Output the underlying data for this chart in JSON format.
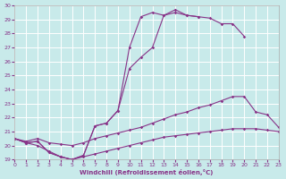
{
  "background_color": "#c8eaea",
  "grid_color": "#ffffff",
  "line_color": "#883388",
  "ylim": [
    19,
    30
  ],
  "xlim": [
    0,
    23
  ],
  "yticks": [
    19,
    20,
    21,
    22,
    23,
    24,
    25,
    26,
    27,
    28,
    29,
    30
  ],
  "xticks": [
    0,
    1,
    2,
    3,
    4,
    5,
    6,
    7,
    8,
    9,
    10,
    11,
    12,
    13,
    14,
    15,
    16,
    17,
    18,
    19,
    20,
    21,
    22,
    23
  ],
  "xlabel": "Windchill (Refroidissement éolien,°C)",
  "line1_x": [
    0,
    1,
    2,
    3,
    4,
    5,
    6,
    7,
    8,
    9,
    10,
    11,
    12,
    13,
    14,
    15,
    16,
    17,
    18,
    19,
    20
  ],
  "line1_y": [
    20.5,
    20.2,
    20.3,
    19.5,
    19.2,
    19.0,
    19.3,
    21.4,
    21.6,
    22.5,
    27.0,
    29.2,
    29.5,
    29.3,
    29.7,
    29.3,
    29.2,
    29.1,
    28.7,
    28.7,
    27.8
  ],
  "line2_x": [
    0,
    1,
    2,
    3,
    4,
    5,
    6,
    7,
    8,
    9,
    10,
    11,
    12,
    13,
    14,
    15,
    16,
    17,
    18
  ],
  "line2_y": [
    20.5,
    20.2,
    20.3,
    19.5,
    19.2,
    19.0,
    19.3,
    21.4,
    21.6,
    22.5,
    25.5,
    26.3,
    27.0,
    29.3,
    29.5,
    29.3,
    29.2,
    null,
    null
  ],
  "line3_x": [
    0,
    1,
    2,
    3,
    4,
    5,
    6,
    7,
    8,
    9,
    10,
    11,
    12,
    13,
    14,
    15,
    16,
    17,
    18,
    19,
    20,
    21,
    22,
    23
  ],
  "line3_y": [
    20.5,
    20.3,
    20.5,
    20.2,
    20.1,
    20.0,
    20.2,
    20.5,
    20.7,
    20.9,
    21.1,
    21.3,
    21.6,
    21.9,
    22.2,
    22.4,
    22.7,
    22.9,
    23.2,
    23.5,
    23.5,
    22.4,
    22.2,
    21.3
  ],
  "line4_x": [
    0,
    1,
    2,
    3,
    4,
    5,
    6,
    7,
    8,
    9,
    10,
    11,
    12,
    13,
    14,
    15,
    16,
    17,
    18,
    19,
    20,
    21,
    22,
    23
  ],
  "line4_y": [
    20.5,
    20.2,
    20.0,
    19.6,
    19.2,
    19.0,
    19.2,
    19.4,
    19.6,
    19.8,
    20.0,
    20.2,
    20.4,
    20.6,
    20.7,
    20.8,
    20.9,
    21.0,
    21.1,
    21.2,
    21.2,
    21.2,
    21.1,
    21.0
  ],
  "marker": "D",
  "markersize": 1.8,
  "linewidth": 0.8
}
